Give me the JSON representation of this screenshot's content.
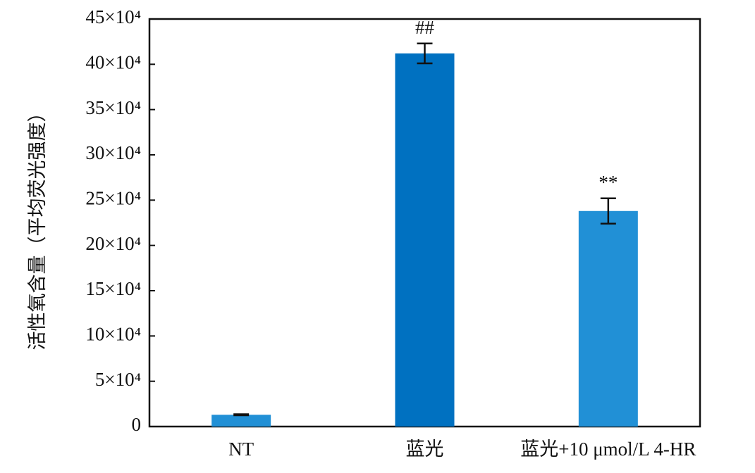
{
  "chart_data": {
    "type": "bar",
    "y_label": "活性氧含量（平均荧光强度）",
    "categories": [
      "NT",
      "蓝光",
      "蓝光+10 μmol/L 4-HR"
    ],
    "values": [
      13000,
      412000,
      238000
    ],
    "errors": [
      600,
      11000,
      14000
    ],
    "significance": [
      null,
      "##",
      "**"
    ],
    "colors": [
      "#2190d6",
      "#0071c1",
      "#2190d6"
    ],
    "ylim": [
      0,
      450000
    ],
    "yticks": [
      0,
      {
        "value": 50000,
        "label": "5×10⁴"
      },
      {
        "value": 100000,
        "label": "10×10⁴"
      },
      {
        "value": 150000,
        "label": "15×10⁴"
      },
      {
        "value": 200000,
        "label": "20×10⁴"
      },
      {
        "value": 250000,
        "label": "25×10⁴"
      },
      {
        "value": 300000,
        "label": "30×10⁴"
      },
      {
        "value": 350000,
        "label": "35×10⁴"
      },
      {
        "value": 400000,
        "label": "40×10⁴"
      },
      {
        "value": 450000,
        "label": "45×10⁴"
      }
    ]
  }
}
